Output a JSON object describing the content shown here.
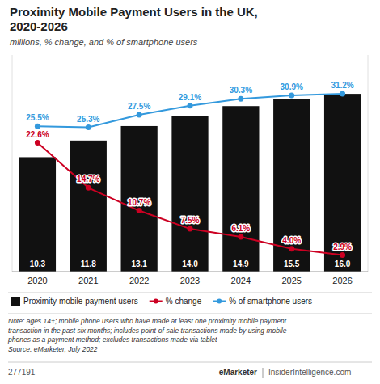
{
  "chart_data": {
    "type": "bar",
    "title": "Proximity Mobile Payment Users in the UK,\n2020-2026",
    "subtitle": "millions, % change, and % of smartphone users",
    "categories": [
      "2020",
      "2021",
      "2022",
      "2023",
      "2024",
      "2025",
      "2026"
    ],
    "series": [
      {
        "name": "Proximity mobile payment users",
        "type": "bar",
        "color": "#111111",
        "values": [
          10.3,
          11.8,
          13.1,
          14.0,
          14.9,
          15.5,
          16.0
        ],
        "value_labels": [
          "10.3",
          "11.8",
          "13.1",
          "14.0",
          "14.9",
          "15.5",
          "16.0"
        ]
      },
      {
        "name": "% change",
        "type": "line",
        "axis": "y2",
        "color": "#cc0022",
        "marker": "circle",
        "values": [
          22.6,
          14.7,
          10.7,
          7.5,
          6.1,
          4.0,
          2.9
        ],
        "value_labels": [
          "22.6%",
          "14.7%",
          "10.7%",
          "7.5%",
          "6.1%",
          "4.0%",
          "2.9%"
        ]
      },
      {
        "name": "% of smartphone users",
        "type": "line",
        "axis": "y2",
        "color": "#3399dd",
        "marker": "circle",
        "values": [
          25.5,
          25.3,
          27.5,
          29.1,
          30.3,
          30.9,
          31.2
        ],
        "value_labels": [
          "25.5%",
          "25.3%",
          "27.5%",
          "29.1%",
          "30.3%",
          "30.9%",
          "31.2%"
        ]
      }
    ],
    "ylim": [
      0,
      19.5
    ],
    "y2lim": [
      0,
      38
    ],
    "data_labels": true,
    "tick_labels": "x",
    "grid": false,
    "legend": "bottom",
    "note": "Note: ages 14+; mobile phone users who have made at least one proximity mobile payment\ntransaction in the past six months; includes point-of-sale transactions made by using mobile\nphones as a payment method; excludes transactions made via tablet\nSource: eMarketer, July 2022",
    "footer_left": "277191",
    "footer_center": "eMarketer",
    "footer_right": "InsiderIntelligence.com"
  }
}
